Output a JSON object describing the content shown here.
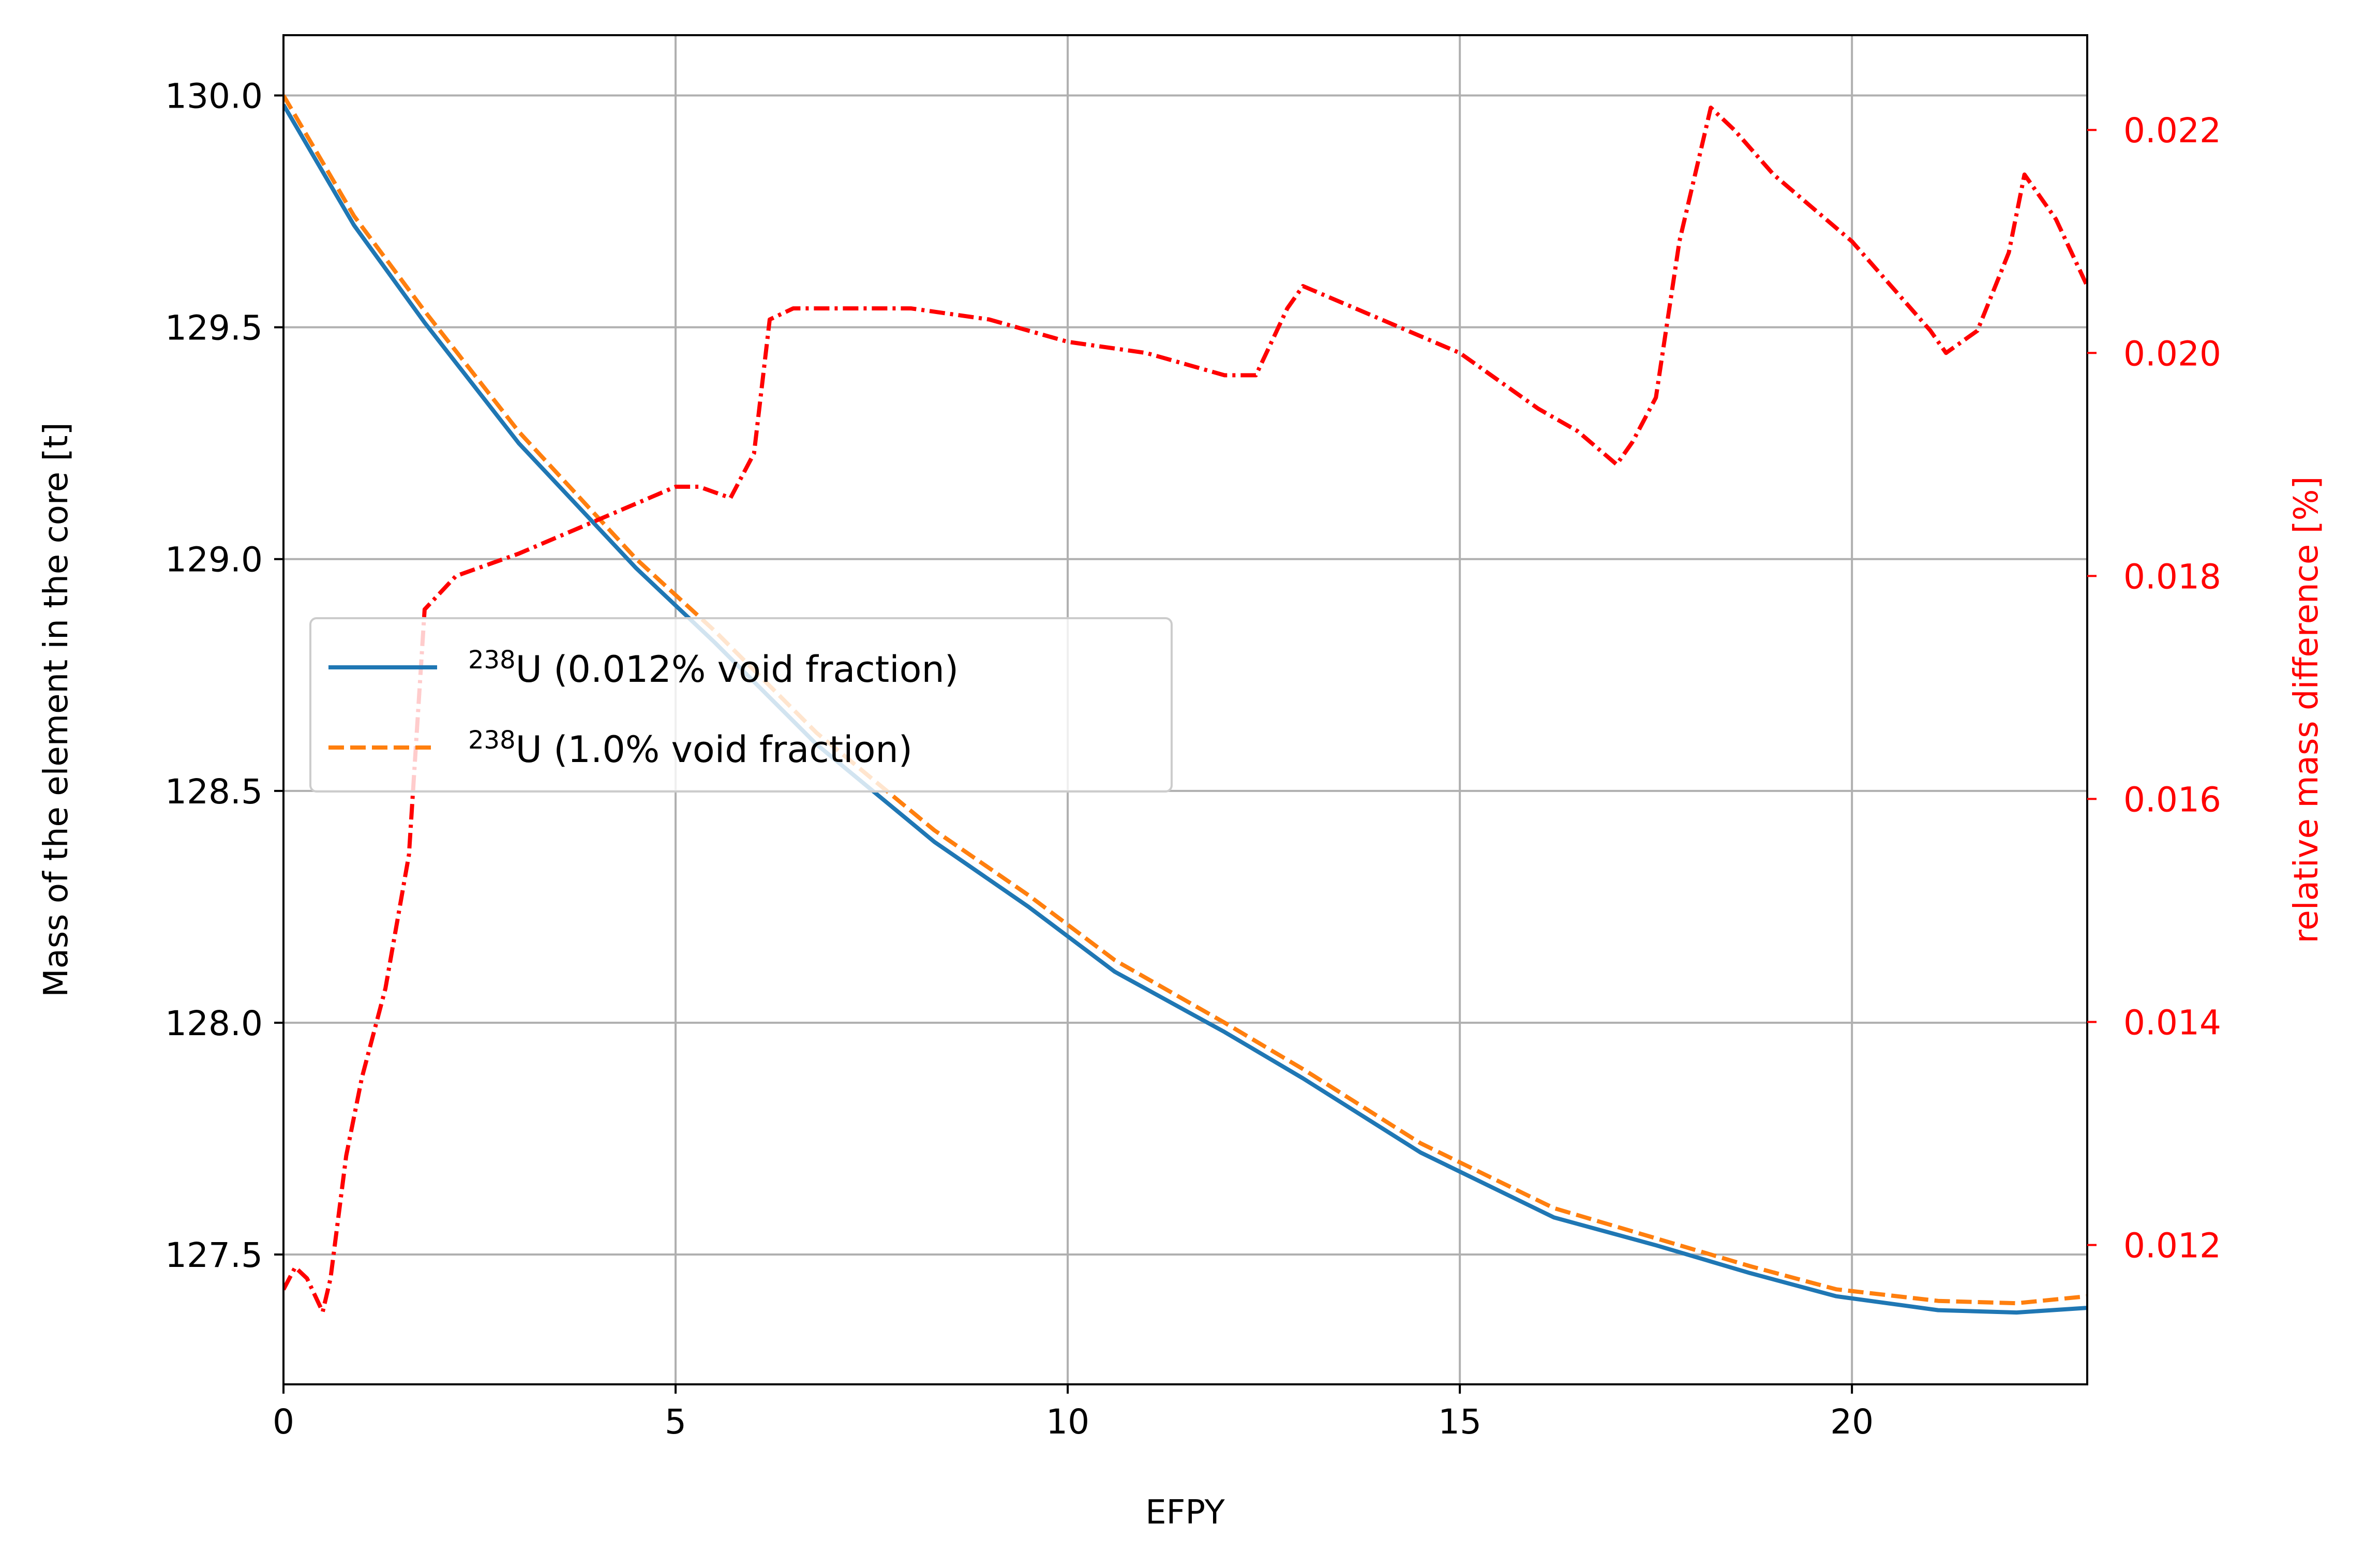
{
  "chart_data": {
    "type": "line",
    "xlabel": "EFPY",
    "ylabel": "Mass of the element in the core [t]",
    "y2label": "relative mass difference [%]",
    "xlim": [
      0,
      23
    ],
    "ylim": [
      127.22,
      130.13
    ],
    "y2lim": [
      0.01075,
      0.02285
    ],
    "x_ticks": [
      0,
      5,
      10,
      15,
      20
    ],
    "x_tick_labels": [
      "0",
      "5",
      "10",
      "15",
      "20"
    ],
    "y_ticks": [
      127.5,
      128.0,
      128.5,
      129.0,
      129.5,
      130.0
    ],
    "y_tick_labels": [
      "127.5",
      "128.0",
      "128.5",
      "129.0",
      "129.5",
      "130.0"
    ],
    "y2_ticks": [
      0.012,
      0.014,
      0.016,
      0.018,
      0.02,
      0.022
    ],
    "y2_tick_labels": [
      "0.012",
      "0.014",
      "0.016",
      "0.018",
      "0.020",
      "0.022"
    ],
    "grid": true,
    "legend_position": "center-left",
    "colors": {
      "series1": "#1f77b4",
      "series2": "#ff7f0e",
      "series3": "#ff0000",
      "grid": "#b0b0b0",
      "axis": "#000000"
    },
    "series": [
      {
        "name": "238U (0.012% void fraction)",
        "legend_sup": "238",
        "legend_rest": "U (0.012% void fraction)",
        "axis": "left",
        "style": "solid",
        "x": [
          0,
          0.9,
          1.8,
          3.0,
          4.5,
          5.5,
          6.8,
          8.3,
          9.5,
          10.6,
          12.0,
          13.0,
          14.5,
          16.2,
          17.5,
          18.7,
          19.8,
          21.1,
          22.1,
          23.0
        ],
        "y": [
          129.98,
          129.72,
          129.51,
          129.25,
          128.98,
          128.82,
          128.6,
          128.39,
          128.25,
          128.11,
          127.98,
          127.88,
          127.72,
          127.58,
          127.52,
          127.46,
          127.41,
          127.38,
          127.375,
          127.385
        ]
      },
      {
        "name": "238U (1.0% void fraction)",
        "legend_sup": "238",
        "legend_rest": "U (1.0% void fraction)",
        "axis": "left",
        "style": "dashed",
        "x": [
          0,
          0.9,
          1.8,
          3.0,
          4.5,
          5.5,
          6.8,
          8.3,
          9.5,
          10.6,
          12.0,
          13.0,
          14.5,
          16.2,
          17.5,
          18.7,
          19.8,
          21.1,
          22.1,
          23.0
        ],
        "y": [
          130.0,
          129.74,
          129.535,
          129.275,
          129.0,
          128.845,
          128.625,
          128.415,
          128.275,
          128.135,
          128.0,
          127.9,
          127.74,
          127.6,
          127.535,
          127.475,
          127.425,
          127.4,
          127.395,
          127.41
        ]
      },
      {
        "name": "",
        "axis": "right",
        "style": "dashdot",
        "x": [
          0,
          0.15,
          0.3,
          0.5,
          0.6,
          0.8,
          1.0,
          1.3,
          1.6,
          1.8,
          2.2,
          3.0,
          4.0,
          5.0,
          5.3,
          5.7,
          6.0,
          6.2,
          6.5,
          7.0,
          8.0,
          9.0,
          10.0,
          11.0,
          11.5,
          12.0,
          12.4,
          12.8,
          13.0,
          14.0,
          15.0,
          16.0,
          16.5,
          17.0,
          17.2,
          17.5,
          17.8,
          18.2,
          18.5,
          19.0,
          20.0,
          21.0,
          21.2,
          21.6,
          22.0,
          22.2,
          22.6,
          23.0
        ],
        "y": [
          0.0116,
          0.0118,
          0.0117,
          0.0114,
          0.0117,
          0.0128,
          0.0135,
          0.0143,
          0.0155,
          0.0177,
          0.018,
          0.0182,
          0.0185,
          0.0188,
          0.0188,
          0.0187,
          0.0191,
          0.0203,
          0.0204,
          0.0204,
          0.0204,
          0.0203,
          0.0201,
          0.02,
          0.0199,
          0.0198,
          0.0198,
          0.0204,
          0.0206,
          0.0203,
          0.02,
          0.0195,
          0.0193,
          0.019,
          0.0192,
          0.0196,
          0.021,
          0.0222,
          0.022,
          0.0216,
          0.021,
          0.0202,
          0.02,
          0.0202,
          0.0209,
          0.0216,
          0.0212,
          0.0206
        ]
      }
    ]
  }
}
